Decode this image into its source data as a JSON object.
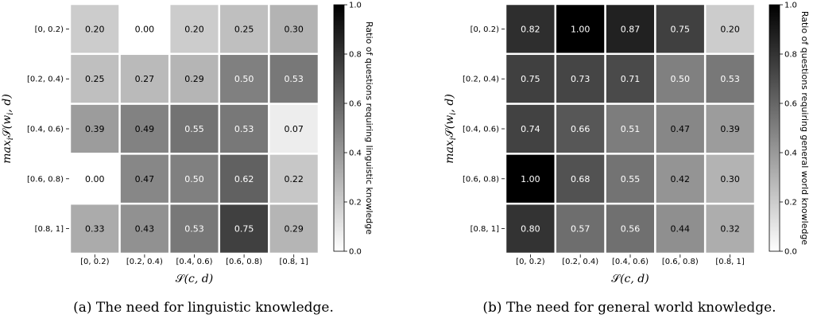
{
  "chart_data": [
    {
      "type": "heatmap",
      "caption": "(a) The need for linguistic knowledge.",
      "xlabel": "S(c, d)",
      "ylabel": "max_i S(w_i, d)",
      "x_categories": [
        "[0, 0.2)",
        "[0.2, 0.4)",
        "[0.4, 0.6)",
        "[0.6, 0.8)",
        "[0.8, 1]"
      ],
      "y_categories": [
        "[0, 0.2)",
        "[0.2, 0.4)",
        "[0.4, 0.6)",
        "[0.6, 0.8)",
        "[0.8, 1]"
      ],
      "values": [
        [
          0.2,
          0.0,
          0.2,
          0.25,
          0.3
        ],
        [
          0.25,
          0.27,
          0.29,
          0.5,
          0.53
        ],
        [
          0.39,
          0.49,
          0.55,
          0.53,
          0.07
        ],
        [
          0.0,
          0.47,
          0.5,
          0.62,
          0.22
        ],
        [
          0.33,
          0.43,
          0.53,
          0.75,
          0.29
        ]
      ],
      "missing_cells": [
        [
          3,
          0
        ]
      ],
      "colorbar": {
        "label": "Ratio of questions requiring linguistic knowledge",
        "range": [
          0.0,
          1.0
        ],
        "ticks": [
          "0.0",
          "0.2",
          "0.4",
          "0.6",
          "0.8",
          "1.0"
        ],
        "colormap": "Greys"
      }
    },
    {
      "type": "heatmap",
      "caption": "(b) The need for general world knowledge.",
      "xlabel": "S(c, d)",
      "ylabel": "max_i S(w_i, d)",
      "x_categories": [
        "[0, 0.2)",
        "[0.2, 0.4)",
        "[0.4, 0.6)",
        "[0.6, 0.8)",
        "[0.8, 1]"
      ],
      "y_categories": [
        "[0, 0.2)",
        "[0.2, 0.4)",
        "[0.4, 0.6)",
        "[0.6, 0.8)",
        "[0.8, 1]"
      ],
      "values": [
        [
          0.82,
          1.0,
          0.87,
          0.75,
          0.2
        ],
        [
          0.75,
          0.73,
          0.71,
          0.5,
          0.53
        ],
        [
          0.74,
          0.66,
          0.51,
          0.47,
          0.39
        ],
        [
          1.0,
          0.68,
          0.55,
          0.42,
          0.3
        ],
        [
          0.8,
          0.57,
          0.56,
          0.44,
          0.32
        ]
      ],
      "missing_cells": [],
      "colorbar": {
        "label": "Ratio of questions requiring general world knowledge",
        "range": [
          0.0,
          1.0
        ],
        "ticks": [
          "0.0",
          "0.2",
          "0.4",
          "0.6",
          "0.8",
          "1.0"
        ],
        "colormap": "Greys"
      }
    }
  ]
}
